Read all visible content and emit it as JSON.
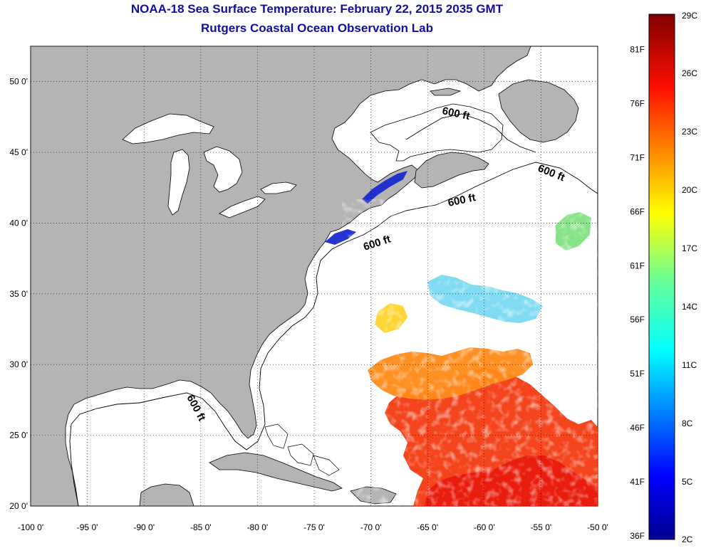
{
  "title": "NOAA-18 Sea Surface Temperature:  February 22, 2015 2035 GMT",
  "subtitle": "Rutgers Coastal Ocean Observation Lab",
  "colors": {
    "land": "#b4b4b4",
    "ocean": "#ffffff",
    "title": "#1010a0"
  },
  "map": {
    "lon_range": [
      -100,
      -50
    ],
    "lat_range": [
      20,
      52.5
    ],
    "lon_ticks": [
      "-100 0'",
      "-95 0'",
      "-90 0'",
      "-85 0'",
      "-80 0'",
      "-75 0'",
      "-70 0'",
      "-65 0'",
      "-60 0'",
      "-55 0'",
      "-50 0'"
    ],
    "lat_ticks": [
      "20 0'",
      "25 0'",
      "30 0'",
      "35 0'",
      "40 0'",
      "45 0'",
      "50 0'"
    ],
    "lat_tick_values": [
      20,
      25,
      30,
      35,
      40,
      45,
      50
    ],
    "lon_tick_values": [
      -100,
      -95,
      -90,
      -85,
      -80,
      -75,
      -70,
      -65,
      -60,
      -55,
      -50
    ],
    "grid": "dotted",
    "shelf_labels": [
      "600 ft",
      "600 ft",
      "600 ft",
      "600 ft",
      "600 ft"
    ]
  },
  "colorbar": {
    "celsius": [
      "29C",
      "26C",
      "23C",
      "20C",
      "17C",
      "14C",
      "11C",
      "8C",
      "5C",
      "2C"
    ],
    "celsius_values": [
      29,
      26,
      23,
      20,
      17,
      14,
      11,
      8,
      5,
      2
    ],
    "fahrenheit": [
      "81F",
      "76F",
      "71F",
      "66F",
      "61F",
      "56F",
      "51F",
      "46F",
      "41F",
      "36F"
    ],
    "fahrenheit_values": [
      81,
      76,
      71,
      66,
      61,
      56,
      51,
      46,
      41,
      36
    ],
    "range_c": [
      2,
      29
    ]
  }
}
